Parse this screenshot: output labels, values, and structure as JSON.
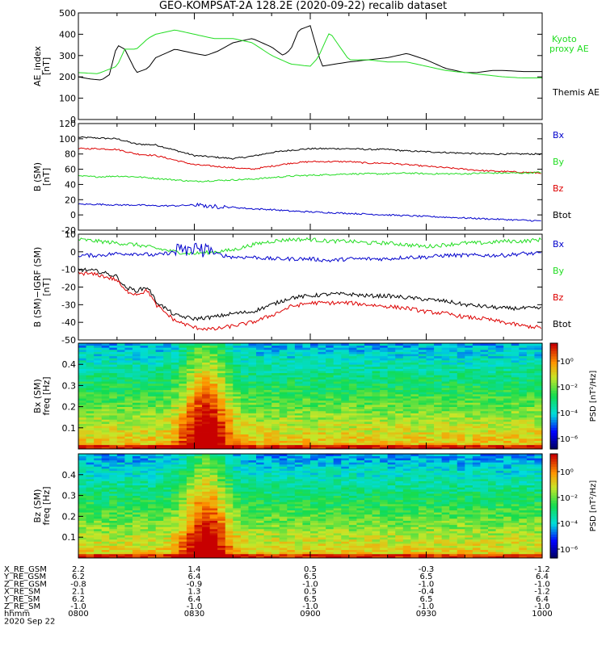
{
  "title": "GEO-KOMPSAT-2A 128.2E (2020-09-22) recalib dataset",
  "colors": {
    "black": "#000000",
    "green": "#22dd22",
    "red": "#dd0000",
    "blue": "#0000cc"
  },
  "chart_data": [
    {
      "type": "line",
      "ylabel_lines": [
        "AE_index",
        "[nT]"
      ],
      "ylim": [
        0,
        500
      ],
      "yticks": [
        0,
        100,
        200,
        300,
        400,
        500
      ],
      "legend": [
        {
          "name": "Kyoto",
          "color": "#22dd22"
        },
        {
          "name": "proxy AE",
          "color": "#22dd22"
        },
        {
          "name": "Themis AE",
          "color": "#000000"
        }
      ],
      "series": [
        {
          "name": "Themis AE",
          "color": "#000000",
          "x": [
            0,
            3,
            6,
            8,
            10,
            12,
            15,
            18,
            20,
            25,
            30,
            33,
            36,
            40,
            45,
            50,
            53,
            55,
            57,
            60,
            63,
            70,
            75,
            80,
            85,
            90,
            95,
            100,
            103,
            105,
            107,
            110,
            115,
            120
          ],
          "y": [
            200,
            190,
            185,
            210,
            350,
            330,
            220,
            240,
            290,
            330,
            310,
            300,
            320,
            360,
            380,
            340,
            300,
            330,
            420,
            440,
            250,
            270,
            280,
            290,
            310,
            280,
            240,
            220,
            220,
            225,
            230,
            230,
            225,
            225
          ]
        },
        {
          "name": "Kyoto proxy AE",
          "color": "#22dd22",
          "x": [
            0,
            5,
            10,
            12,
            15,
            18,
            20,
            25,
            30,
            35,
            40,
            45,
            50,
            55,
            60,
            62,
            65,
            70,
            75,
            80,
            85,
            90,
            95,
            100,
            105,
            110,
            115,
            120
          ],
          "y": [
            220,
            215,
            250,
            330,
            330,
            380,
            400,
            420,
            400,
            380,
            380,
            360,
            300,
            260,
            250,
            290,
            410,
            280,
            280,
            270,
            270,
            250,
            230,
            220,
            210,
            200,
            195,
            195
          ]
        }
      ]
    },
    {
      "type": "line",
      "ylabel_lines": [
        "B (SM)",
        "[nT]"
      ],
      "ylim": [
        -20,
        120
      ],
      "yticks": [
        -20,
        0,
        20,
        40,
        60,
        80,
        100,
        120
      ],
      "legend": [
        {
          "name": "Bx",
          "color": "#0000cc"
        },
        {
          "name": "By",
          "color": "#22dd22"
        },
        {
          "name": "Bz",
          "color": "#dd0000"
        },
        {
          "name": "Btot",
          "color": "#000000"
        }
      ],
      "series": [
        {
          "name": "Btot",
          "color": "#000000",
          "x": [
            0,
            5,
            10,
            15,
            20,
            25,
            30,
            35,
            40,
            45,
            50,
            55,
            60,
            65,
            70,
            75,
            80,
            85,
            90,
            95,
            100,
            105,
            110,
            115,
            120
          ],
          "y": [
            102,
            101,
            100,
            93,
            92,
            85,
            78,
            76,
            74,
            77,
            82,
            85,
            87,
            87,
            87,
            86,
            86,
            84,
            83,
            82,
            81,
            80,
            80,
            80,
            80
          ]
        },
        {
          "name": "Bz",
          "color": "#dd0000",
          "x": [
            0,
            5,
            10,
            15,
            20,
            25,
            30,
            35,
            40,
            45,
            50,
            55,
            60,
            65,
            70,
            75,
            80,
            85,
            90,
            95,
            100,
            105,
            110,
            115,
            120
          ],
          "y": [
            87,
            87,
            86,
            80,
            78,
            72,
            66,
            64,
            62,
            60,
            64,
            68,
            70,
            70,
            70,
            68,
            68,
            66,
            64,
            62,
            60,
            58,
            57,
            56,
            55
          ]
        },
        {
          "name": "By",
          "color": "#22dd22",
          "x": [
            0,
            5,
            10,
            15,
            20,
            25,
            30,
            35,
            40,
            45,
            50,
            55,
            60,
            65,
            70,
            75,
            80,
            85,
            90,
            95,
            100,
            105,
            110,
            115,
            120
          ],
          "y": [
            51,
            50,
            51,
            50,
            48,
            46,
            44,
            45,
            46,
            47,
            49,
            51,
            52,
            53,
            54,
            54,
            54,
            55,
            54,
            54,
            54,
            55,
            55,
            55,
            56
          ]
        },
        {
          "name": "Bx",
          "color": "#0000cc",
          "x": [
            0,
            5,
            10,
            15,
            20,
            25,
            30,
            35,
            40,
            45,
            50,
            55,
            60,
            65,
            70,
            75,
            80,
            85,
            90,
            95,
            100,
            105,
            110,
            115,
            120
          ],
          "y": [
            14,
            14,
            13,
            13,
            12,
            12,
            13,
            11,
            10,
            8,
            7,
            5,
            4,
            3,
            2,
            1,
            0,
            -1,
            -2,
            -3,
            -4,
            -5,
            -6,
            -7,
            -8
          ]
        }
      ]
    },
    {
      "type": "line",
      "ylabel_lines": [
        "B (SM)−IGRF (SM)",
        "[nT]"
      ],
      "ylim": [
        -50,
        10
      ],
      "yticks": [
        -50,
        -40,
        -30,
        -20,
        -10,
        0,
        10
      ],
      "legend": [
        {
          "name": "Bx",
          "color": "#0000cc"
        },
        {
          "name": "By",
          "color": "#22dd22"
        },
        {
          "name": "Bz",
          "color": "#dd0000"
        },
        {
          "name": "Btot",
          "color": "#000000"
        }
      ],
      "series": [
        {
          "name": "By",
          "color": "#22dd22",
          "x": [
            0,
            5,
            10,
            15,
            20,
            25,
            30,
            35,
            40,
            45,
            50,
            55,
            60,
            65,
            70,
            75,
            80,
            85,
            90,
            95,
            100,
            105,
            110,
            115,
            120
          ],
          "y": [
            7,
            6,
            5,
            4,
            2,
            0,
            -1,
            0,
            1,
            4,
            6,
            7,
            7,
            6,
            6,
            5,
            5,
            4,
            3,
            4,
            5,
            5,
            6,
            6,
            7
          ]
        },
        {
          "name": "Bx",
          "color": "#0000cc",
          "x": [
            0,
            5,
            10,
            15,
            20,
            25,
            30,
            35,
            40,
            45,
            50,
            55,
            60,
            65,
            70,
            75,
            80,
            85,
            90,
            95,
            100,
            105,
            110,
            115,
            120
          ],
          "y": [
            -2,
            -2,
            -1,
            -1,
            -2,
            0,
            2,
            -1,
            -3,
            -3,
            -4,
            -4,
            -4,
            -5,
            -4,
            -4,
            -4,
            -3,
            -3,
            -2,
            -2,
            -2,
            -2,
            -1,
            -1
          ]
        },
        {
          "name": "Btot",
          "color": "#000000",
          "x": [
            0,
            5,
            10,
            12,
            15,
            18,
            20,
            25,
            30,
            35,
            40,
            45,
            50,
            55,
            60,
            65,
            70,
            75,
            80,
            85,
            90,
            95,
            100,
            105,
            110,
            115,
            120
          ],
          "y": [
            -10,
            -11,
            -14,
            -20,
            -22,
            -20,
            -28,
            -36,
            -38,
            -37,
            -35,
            -34,
            -30,
            -26,
            -25,
            -24,
            -24,
            -25,
            -25,
            -26,
            -27,
            -28,
            -30,
            -31,
            -32,
            -32,
            -32
          ]
        },
        {
          "name": "Bz",
          "color": "#dd0000",
          "x": [
            0,
            5,
            10,
            12,
            15,
            18,
            20,
            25,
            30,
            35,
            40,
            45,
            50,
            55,
            60,
            65,
            70,
            75,
            80,
            85,
            90,
            95,
            100,
            105,
            110,
            115,
            120
          ],
          "y": [
            -12,
            -13,
            -16,
            -22,
            -24,
            -22,
            -30,
            -39,
            -43,
            -44,
            -42,
            -40,
            -36,
            -31,
            -29,
            -29,
            -29,
            -30,
            -31,
            -32,
            -34,
            -35,
            -37,
            -38,
            -40,
            -42,
            -43
          ]
        }
      ]
    },
    {
      "type": "heatmap",
      "ylabel_lines": [
        "Bx (SM)",
        "freq [Hz]"
      ],
      "ylim": [
        0,
        0.5
      ],
      "yticks": [
        0.1,
        0.2,
        0.3,
        0.4
      ],
      "colorbar": {
        "label": "PSD [nT²/Hz]",
        "ticks": [
          "10⁰",
          "10⁻²",
          "10⁻⁴",
          "10⁻⁶"
        ]
      }
    },
    {
      "type": "heatmap",
      "ylabel_lines": [
        "Bz (SM)",
        "freq [Hz]"
      ],
      "ylim": [
        0,
        0.5
      ],
      "yticks": [
        0.1,
        0.2,
        0.3,
        0.4
      ],
      "colorbar": {
        "label": "PSD [nT²/Hz]",
        "ticks": [
          "10⁰",
          "10⁻²",
          "10⁻⁴",
          "10⁻⁶"
        ]
      }
    }
  ],
  "time_axis": {
    "rows": [
      {
        "label": "X_RE_GSM",
        "values": [
          "2.2",
          "1.4",
          "0.5",
          "-0.3",
          "-1.2"
        ]
      },
      {
        "label": "Y_RE_GSM",
        "values": [
          "6.2",
          "6.4",
          "6.5",
          "6.5",
          "6.4"
        ]
      },
      {
        "label": "Z_RE_GSM",
        "values": [
          "-0.8",
          "-0.9",
          "-1.0",
          "-1.0",
          "-1.0"
        ]
      },
      {
        "label": "X_RE_SM",
        "values": [
          "2.1",
          "1.3",
          "0.5",
          "-0.4",
          "-1.2"
        ]
      },
      {
        "label": "Y_RE_SM",
        "values": [
          "6.2",
          "6.4",
          "6.5",
          "6.5",
          "6.4"
        ]
      },
      {
        "label": "Z_RE_SM",
        "values": [
          "-1.0",
          "-1.0",
          "-1.0",
          "-1.0",
          "-1.0"
        ]
      },
      {
        "label": "hhmm",
        "values": [
          "0800",
          "0830",
          "0900",
          "0930",
          "1000"
        ]
      }
    ],
    "date": "2020 Sep 22"
  }
}
